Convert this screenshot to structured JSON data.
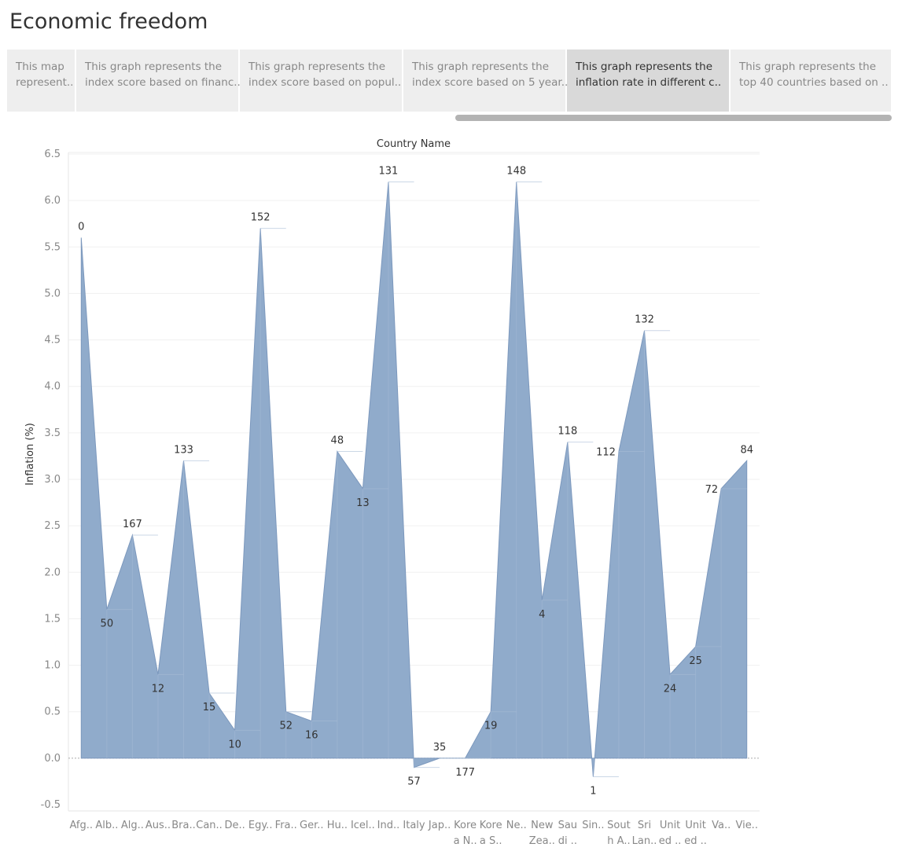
{
  "dashboard": {
    "title": "Economic freedom",
    "tabs": [
      {
        "line1": "This map",
        "line2": "represent..",
        "active": false
      },
      {
        "line1": "This graph represents the",
        "line2": "index score based on financ..",
        "active": false
      },
      {
        "line1": "This graph represents the",
        "line2": "index score based on popul..",
        "active": false
      },
      {
        "line1": "This graph represents the",
        "line2": "index score based on 5 year..",
        "active": false
      },
      {
        "line1": "This graph represents the",
        "line2": "inflation rate in different c..",
        "active": true
      },
      {
        "line1": "This graph represents the",
        "line2": "top 40 countries based  on ..",
        "active": false
      }
    ]
  },
  "chart_data": {
    "type": "area",
    "title": "Country Name",
    "xlabel": "",
    "ylabel": "Inflation (%)",
    "ylim": [
      -0.5,
      6.5
    ],
    "yticks": [
      "6.5",
      "6.0",
      "5.5",
      "5.0",
      "4.5",
      "4.0",
      "3.5",
      "3.0",
      "2.5",
      "2.0",
      "1.5",
      "1.0",
      "0.5",
      "0.0",
      "-0.5"
    ],
    "color": "#8aa6c8",
    "categories": [
      [
        "Afg.."
      ],
      [
        "Alb.."
      ],
      [
        "Alg.."
      ],
      [
        "Aus.."
      ],
      [
        "Bra.."
      ],
      [
        "Can.."
      ],
      [
        "De.."
      ],
      [
        "Egy.."
      ],
      [
        "Fra.."
      ],
      [
        "Ger.."
      ],
      [
        "Hu.."
      ],
      [
        "Icel.."
      ],
      [
        "Ind.."
      ],
      [
        "Italy"
      ],
      [
        "Jap.."
      ],
      [
        "Kore",
        "a N.."
      ],
      [
        "Kore",
        "a S.."
      ],
      [
        "Ne.."
      ],
      [
        "New",
        "Zea.."
      ],
      [
        "Sau",
        "di .."
      ],
      [
        "Sin.."
      ],
      [
        "Sout",
        "h A.."
      ],
      [
        "Sri",
        "Lan.."
      ],
      [
        "Unit",
        "ed .."
      ],
      [
        "Unit",
        "ed .."
      ],
      [
        "Va.."
      ],
      [
        "Vie.."
      ]
    ],
    "values": [
      5.6,
      1.6,
      2.4,
      0.9,
      3.2,
      0.7,
      0.3,
      5.7,
      0.5,
      0.4,
      3.3,
      2.9,
      6.2,
      -0.1,
      0.0,
      0.0,
      0.5,
      6.2,
      1.7,
      3.4,
      -0.2,
      3.3,
      4.6,
      0.9,
      1.2,
      2.9,
      3.2
    ],
    "labels": [
      "0",
      "50",
      "167",
      "12",
      "133",
      "15",
      "10",
      "152",
      "52",
      "16",
      "48",
      "13",
      "131",
      "57",
      "35",
      "177",
      "19",
      "148",
      "4",
      "118",
      "1",
      "112",
      "132",
      "24",
      "25",
      "72",
      "84"
    ],
    "label_pos": [
      "above",
      "below",
      "above",
      "below",
      "above",
      "below",
      "below",
      "above",
      "below",
      "below",
      "above",
      "below",
      "above",
      "below",
      "above",
      "below",
      "below",
      "above",
      "below",
      "above",
      "below",
      "left",
      "above",
      "below",
      "below",
      "left",
      "above"
    ]
  }
}
